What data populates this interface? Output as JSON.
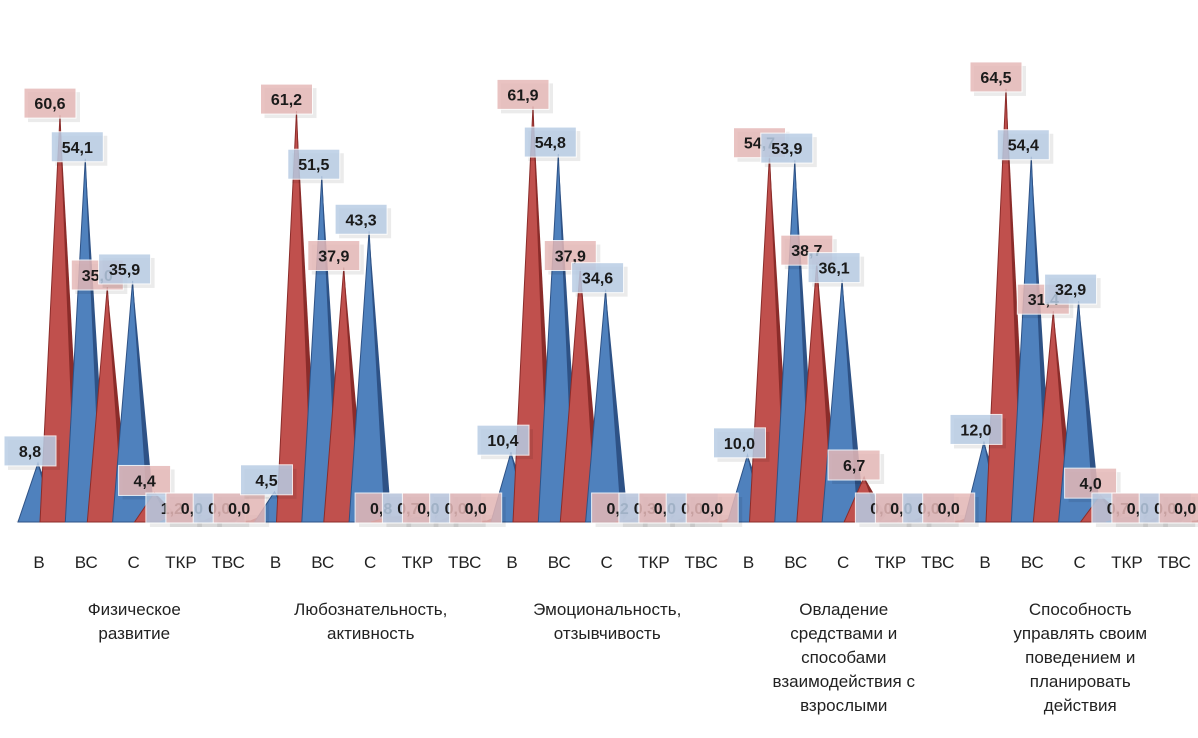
{
  "chart_data": {
    "type": "bar",
    "shape": "pyramid",
    "subcategories": [
      "В",
      "ВС",
      "С",
      "ТКР",
      "ТВС"
    ],
    "groups": [
      {
        "label": "Физическое развитие",
        "label_lines": [
          "Физическое",
          "развитие"
        ],
        "blue": [
          8.8,
          54.1,
          35.9,
          1.2,
          0.0
        ],
        "red": [
          60.6,
          35.0,
          4.4,
          0.0,
          0.0
        ],
        "blue_labels": [
          "8,8",
          "54,1",
          "35,9",
          "1,2",
          "0,0"
        ],
        "red_labels": [
          "60,6",
          "35,0",
          "4,4",
          "0,0",
          "0,0"
        ]
      },
      {
        "label": "Любознательность, активность",
        "label_lines": [
          "Любознательность,",
          "активность"
        ],
        "blue": [
          4.5,
          51.5,
          43.3,
          0.7,
          0.0
        ],
        "red": [
          61.2,
          37.9,
          0.8,
          0.0,
          0.0
        ],
        "blue_labels": [
          "4,5",
          "51,5",
          "43,3",
          "0,7",
          "0,0"
        ],
        "red_labels": [
          "61,2",
          "37,9",
          "0,8",
          "0,0",
          "0,0"
        ]
      },
      {
        "label": "Эмоциональность, отзывчивость",
        "label_lines": [
          "Эмоциональность,",
          "отзывчивость"
        ],
        "blue": [
          10.4,
          54.8,
          34.6,
          0.3,
          0.0
        ],
        "red": [
          61.9,
          37.9,
          0.2,
          0.0,
          0.0
        ],
        "blue_labels": [
          "10,4",
          "54,8",
          "34,6",
          "0,3",
          "0,0"
        ],
        "red_labels": [
          "61,9",
          "37,9",
          "0,2",
          "0,0",
          "0,0"
        ]
      },
      {
        "label": "Овладение средствами и способами взаимодействия с взрослыми",
        "label_lines": [
          "Овладение",
          "средствами и",
          "способами",
          "взаимодействия с",
          "взрослыми"
        ],
        "blue": [
          10.0,
          53.9,
          36.1,
          0.0,
          0.0
        ],
        "red": [
          54.7,
          38.7,
          6.7,
          0.0,
          0.0
        ],
        "blue_labels": [
          "10,0",
          "53,9",
          "36,1",
          "0,0",
          "0,0"
        ],
        "red_labels": [
          "54,7",
          "38,7",
          "6,7",
          "0,0",
          "0,0"
        ]
      },
      {
        "label": "Способность управлять своим поведением и планировать действия",
        "label_lines": [
          "Способность",
          "управлять своим",
          "поведением и",
          "планировать",
          "действия"
        ],
        "blue": [
          12.0,
          54.4,
          32.9,
          0.7,
          0.0
        ],
        "red": [
          64.5,
          31.4,
          4.0,
          0.0,
          0.0
        ],
        "blue_labels": [
          "12,0",
          "54,4",
          "32,9",
          "0,7",
          "0,0"
        ],
        "red_labels": [
          "64,5",
          "31,4",
          "4,0",
          "0,0",
          "0,0"
        ]
      }
    ],
    "ylim": [
      0,
      70
    ],
    "legend": "none",
    "grid": false,
    "colors": {
      "blue": "#4f81bd",
      "blue_dark": "#2e5286",
      "red": "#c0504d",
      "red_dark": "#8b2c2a",
      "blue_label_bg": "#b9cde5",
      "red_label_bg": "#e6b9b8"
    }
  }
}
